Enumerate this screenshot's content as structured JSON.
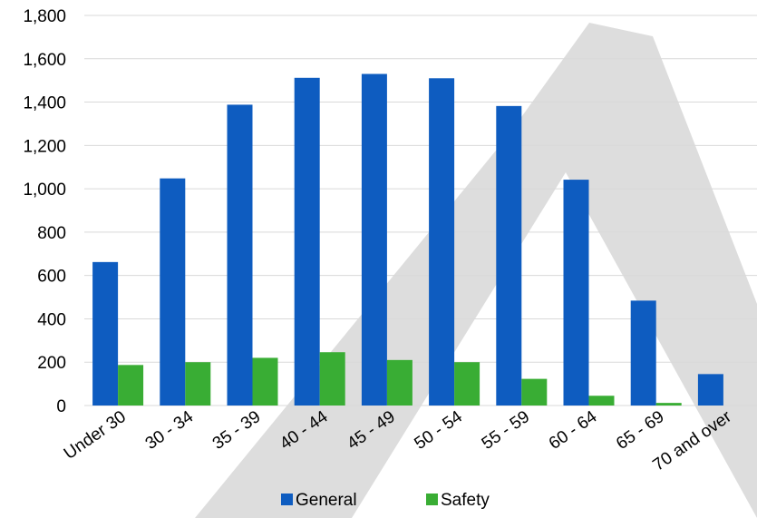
{
  "chart_data": {
    "type": "bar",
    "title": "",
    "xlabel": "",
    "ylabel": "",
    "categories": [
      "Under 30",
      "30 - 34",
      "35 - 39",
      "40 - 44",
      "45 - 49",
      "50 - 54",
      "55 - 59",
      "60 - 64",
      "65 - 69",
      "70 and over"
    ],
    "series": [
      {
        "name": "General",
        "color": "#0e5cc0",
        "values": [
          662,
          1048,
          1388,
          1512,
          1530,
          1510,
          1382,
          1042,
          484,
          145
        ]
      },
      {
        "name": "Safety",
        "color": "#39ad34",
        "values": [
          187,
          200,
          220,
          246,
          210,
          200,
          123,
          45,
          12,
          0
        ]
      }
    ],
    "ylim": [
      0,
      1800
    ],
    "yticks": [
      "0",
      "200",
      "400",
      "600",
      "800",
      "1,000",
      "1,200",
      "1,400",
      "1,600",
      "1,800"
    ],
    "grid": true,
    "legend_position": "bottom",
    "watermark_color": "#d9d9d9"
  }
}
